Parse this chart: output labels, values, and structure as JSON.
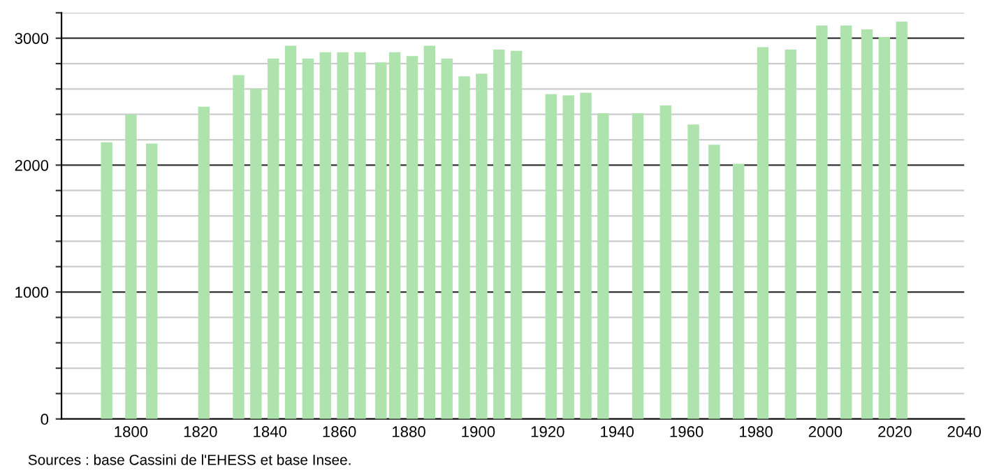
{
  "chart_data": {
    "type": "bar",
    "color": "#aee3ae",
    "x": [
      1793,
      1800,
      1806,
      1821,
      1831,
      1836,
      1841,
      1846,
      1851,
      1856,
      1861,
      1866,
      1872,
      1876,
      1881,
      1886,
      1891,
      1896,
      1901,
      1906,
      1911,
      1921,
      1926,
      1931,
      1936,
      1946,
      1954,
      1962,
      1968,
      1975,
      1982,
      1990,
      1999,
      2006,
      2012,
      2017,
      2022
    ],
    "values": [
      2180,
      2400,
      2170,
      2460,
      2710,
      2600,
      2840,
      2940,
      2840,
      2890,
      2890,
      2890,
      2810,
      2890,
      2860,
      2940,
      2840,
      2700,
      2720,
      2910,
      2900,
      2560,
      2550,
      2570,
      2410,
      2410,
      2470,
      2320,
      2160,
      2010,
      2930,
      2910,
      3100,
      3100,
      3070,
      3010,
      3130
    ],
    "xlim": [
      1780,
      2040
    ],
    "xticks": [
      1800,
      1820,
      1840,
      1860,
      1880,
      1900,
      1920,
      1940,
      1960,
      1980,
      2000,
      2020,
      2040
    ],
    "ylim": [
      0,
      3200
    ],
    "yticks": [
      0,
      {
        "value": 200,
        "label": null
      },
      {
        "value": 400,
        "label": null
      },
      {
        "value": 600,
        "label": null
      },
      {
        "value": 800,
        "label": null
      },
      1000,
      {
        "value": 1200,
        "label": null
      },
      {
        "value": 1400,
        "label": null
      },
      {
        "value": 1600,
        "label": null
      },
      {
        "value": 1800,
        "label": null
      },
      2000,
      {
        "value": 2200,
        "label": null
      },
      {
        "value": 2400,
        "label": null
      },
      {
        "value": 2600,
        "label": null
      },
      {
        "value": 2800,
        "label": null
      },
      3000,
      {
        "value": 3200,
        "label": null
      }
    ],
    "grid": "y",
    "annotations": [
      "Sources : base Cassini de l'EHESS et base Insee."
    ]
  }
}
